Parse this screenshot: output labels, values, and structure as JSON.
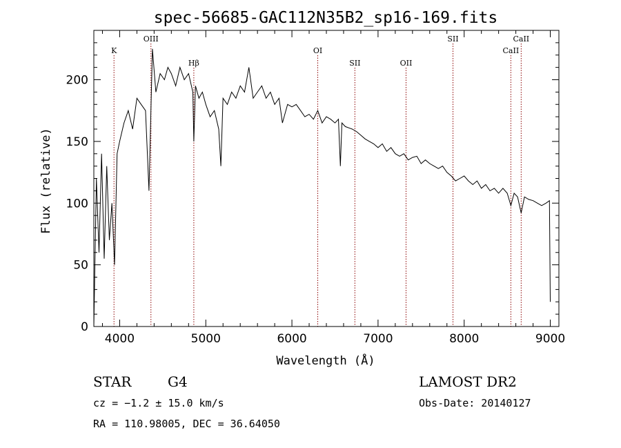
{
  "chart_data": {
    "type": "line",
    "title": "spec-56685-GAC112N35B2_sp16-169.fits",
    "xlabel": "Wavelength (Å)",
    "ylabel": "Flux (relative)",
    "xlim": [
      3700,
      9100
    ],
    "ylim": [
      0,
      240
    ],
    "x_ticks": [
      4000,
      5000,
      6000,
      7000,
      8000,
      9000
    ],
    "y_ticks": [
      0,
      50,
      100,
      150,
      200
    ],
    "grid": false,
    "series": [
      {
        "values_note": "",
        "x": [
          3700,
          3730,
          3760,
          3790,
          3820,
          3850,
          3880,
          3910,
          3940,
          3970,
          4000,
          4050,
          4100,
          4150,
          4200,
          4250,
          4300,
          4340,
          4380,
          4420,
          4470,
          4520,
          4560,
          4600,
          4650,
          4700,
          4750,
          4800,
          4850,
          4861,
          4880,
          4920,
          4960,
          5000,
          5050,
          5100,
          5150,
          5175,
          5200,
          5250,
          5300,
          5350,
          5400,
          5450,
          5500,
          5550,
          5600,
          5650,
          5700,
          5750,
          5800,
          5850,
          5890,
          5950,
          6000,
          6050,
          6100,
          6150,
          6200,
          6250,
          6300,
          6350,
          6400,
          6450,
          6500,
          6540,
          6563,
          6580,
          6620,
          6700,
          6750,
          6800,
          6850,
          6900,
          6950,
          7000,
          7050,
          7100,
          7150,
          7200,
          7250,
          7300,
          7350,
          7400,
          7450,
          7500,
          7550,
          7600,
          7650,
          7700,
          7750,
          7800,
          7850,
          7900,
          7950,
          8000,
          8050,
          8100,
          8150,
          8200,
          8250,
          8300,
          8350,
          8400,
          8450,
          8500,
          8542,
          8580,
          8620,
          8662,
          8700,
          8750,
          8800,
          8850,
          8900,
          8950,
          8990,
          9000
        ],
        "y": [
          0,
          120,
          60,
          140,
          55,
          130,
          70,
          100,
          50,
          140,
          150,
          165,
          175,
          160,
          185,
          180,
          175,
          110,
          225,
          190,
          205,
          200,
          210,
          205,
          195,
          210,
          200,
          205,
          190,
          150,
          195,
          185,
          190,
          180,
          170,
          175,
          160,
          130,
          185,
          180,
          190,
          185,
          195,
          190,
          210,
          185,
          190,
          195,
          185,
          190,
          180,
          185,
          165,
          180,
          178,
          180,
          175,
          170,
          172,
          168,
          175,
          165,
          170,
          168,
          165,
          168,
          130,
          165,
          162,
          160,
          158,
          155,
          152,
          150,
          148,
          145,
          148,
          142,
          145,
          140,
          138,
          140,
          135,
          137,
          138,
          132,
          135,
          132,
          130,
          128,
          130,
          125,
          122,
          118,
          120,
          122,
          118,
          115,
          118,
          112,
          115,
          110,
          112,
          108,
          112,
          108,
          98,
          108,
          105,
          92,
          105,
          103,
          102,
          100,
          98,
          100,
          102,
          20
        ]
      }
    ],
    "spectral_lines": [
      {
        "label": "K",
        "x": 3934,
        "row": 1
      },
      {
        "label": "OIII",
        "x": 4363,
        "row": 0
      },
      {
        "label": "Hβ",
        "x": 4861,
        "row": 2
      },
      {
        "label": "OI",
        "x": 6300,
        "row": 1
      },
      {
        "label": "SII",
        "x": 6731,
        "row": 2
      },
      {
        "label": "OII",
        "x": 7325,
        "row": 2
      },
      {
        "label": "SII",
        "x": 7870,
        "row": 0
      },
      {
        "label": "CaII",
        "x": 8542,
        "row": 1
      },
      {
        "label": "CaII",
        "x": 8662,
        "row": 0
      }
    ]
  },
  "info": {
    "class": "STAR",
    "subclass": "G4",
    "survey": "LAMOST DR2",
    "cz": "cz = −1.2 ± 15.0 km/s",
    "obs_date": "Obs-Date: 20140127",
    "radec": "RA = 110.98005, DEC =  36.64050"
  }
}
